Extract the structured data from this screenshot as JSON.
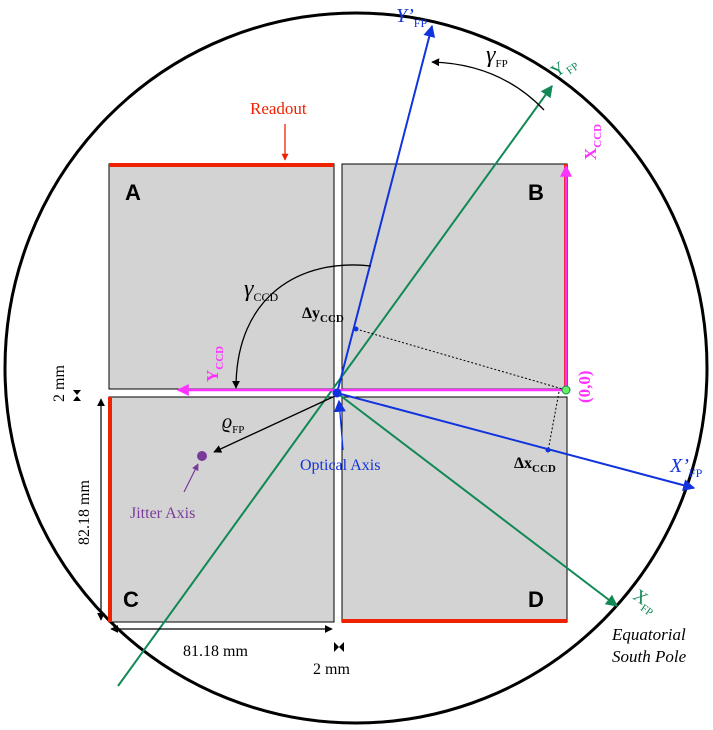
{
  "colors": {
    "ccd_fill": "#d3d3d3",
    "readout": "#ee2200",
    "ccd_axes": "#ff33ff",
    "fp_axes": "#118855",
    "rotated_fp_axes": "#1133dd",
    "jitter": "#7a3a9a",
    "line": "#000000"
  },
  "labels": {
    "readout": "Readout",
    "ccd_a": "A",
    "ccd_b": "B",
    "ccd_c": "C",
    "ccd_d": "D",
    "origin": "(0,0)",
    "optical_axis": "Optical Axis",
    "jitter_axis": "Jitter Axis",
    "equatorial_line1": "Equatorial",
    "equatorial_line2": "South Pole",
    "dim_gap_left": "2 mm",
    "dim_height": "82.18 mm",
    "dim_width": "81.18 mm",
    "dim_gap_bottom": "2 mm"
  },
  "symbols": {
    "y_fp_prime": {
      "main": "Y’",
      "sub": "FP"
    },
    "x_fp_prime": {
      "main": "X’",
      "sub": "FP"
    },
    "y_fp": {
      "main": "Y",
      "sub": "FP"
    },
    "x_fp": {
      "main": "X",
      "sub": "FP"
    },
    "gamma_fp": {
      "main": "γ",
      "sub": "FP"
    },
    "gamma_ccd": {
      "main": "γ",
      "sub": "CCD"
    },
    "x_ccd": {
      "main": "X",
      "sub": "CCD"
    },
    "y_ccd": {
      "main": "Y",
      "sub": "CCD"
    },
    "delta_y_ccd": {
      "main": "Δy",
      "sub": "CCD"
    },
    "delta_x_ccd": {
      "main": "Δx",
      "sub": "CCD"
    },
    "rho_fp": {
      "main": "ϱ",
      "sub": "FP"
    }
  },
  "icons": [
    "arrow-head",
    "dimension-arrow"
  ]
}
